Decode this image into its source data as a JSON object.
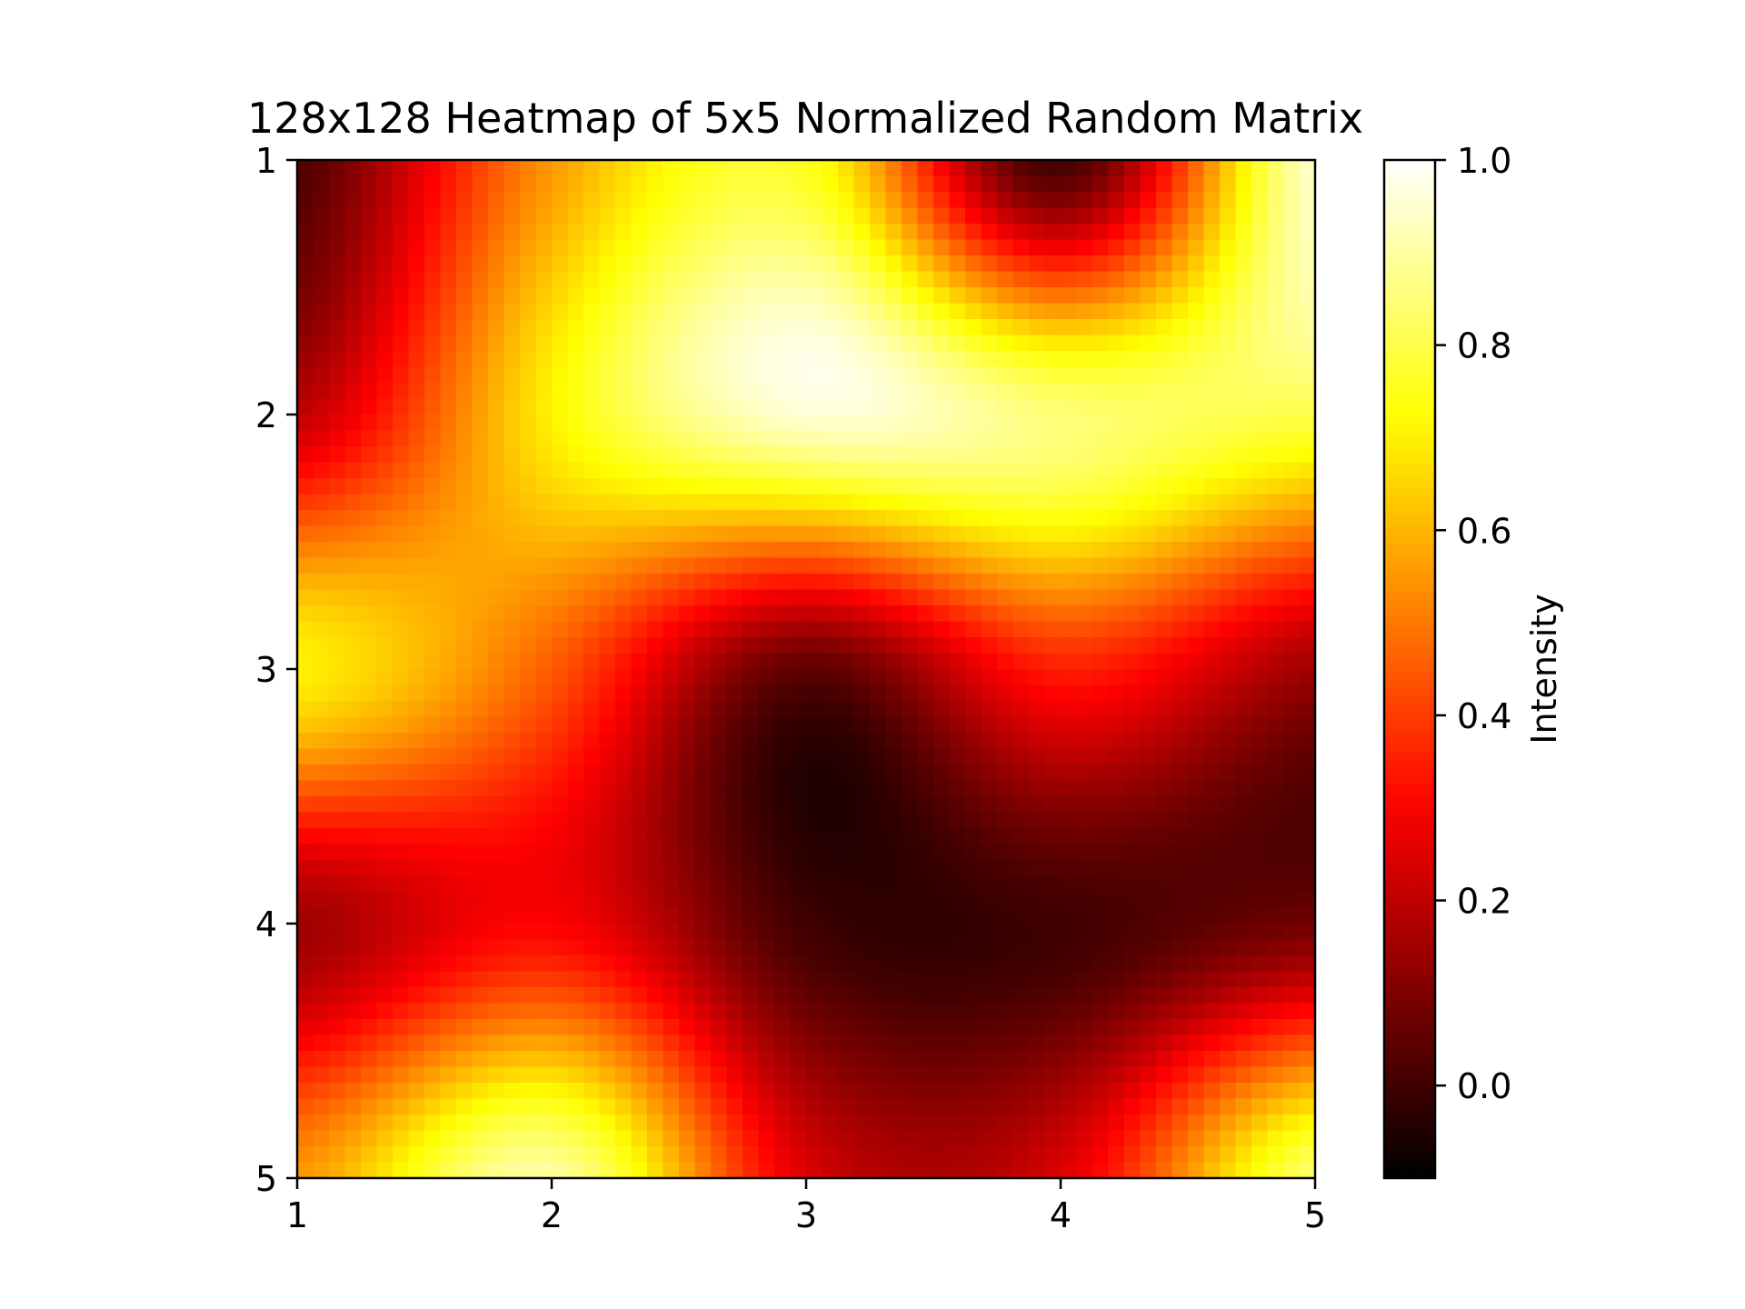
{
  "chart_data": {
    "type": "heatmap",
    "title": "128x128 Heatmap of 5x5 Normalized Random Matrix",
    "xlabel": "",
    "ylabel": "",
    "x_ticks": [
      "1",
      "2",
      "3",
      "4",
      "5"
    ],
    "y_ticks": [
      "1",
      "2",
      "3",
      "4",
      "5"
    ],
    "xlim": [
      1,
      5
    ],
    "ylim": [
      5,
      1
    ],
    "upsampled_resolution": [
      128,
      128
    ],
    "interpolation": "bicubic",
    "colormap": "hot",
    "colormap_stops": [
      {
        "v": 0.0,
        "color": "#000000"
      },
      {
        "v": 0.365,
        "color": "#ff0000"
      },
      {
        "v": 0.746,
        "color": "#ffff00"
      },
      {
        "v": 1.0,
        "color": "#ffffff"
      }
    ],
    "matrix": [
      [
        0.02,
        0.55,
        0.75,
        0.0,
        0.95
      ],
      [
        0.2,
        0.7,
        0.95,
        0.85,
        0.8
      ],
      [
        0.7,
        0.45,
        0.05,
        0.35,
        0.15
      ],
      [
        0.15,
        0.3,
        0.0,
        0.0,
        0.08
      ],
      [
        0.55,
        0.9,
        0.25,
        0.25,
        0.85
      ]
    ],
    "colorbar": {
      "label": "Intensity",
      "vmin": -0.1,
      "vmax": 1.0,
      "ticks": [
        "0.0",
        "0.2",
        "0.4",
        "0.6",
        "0.8",
        "1.0"
      ],
      "tick_values": [
        0.0,
        0.2,
        0.4,
        0.6,
        0.8,
        1.0
      ],
      "location": "right"
    },
    "grid": false
  }
}
